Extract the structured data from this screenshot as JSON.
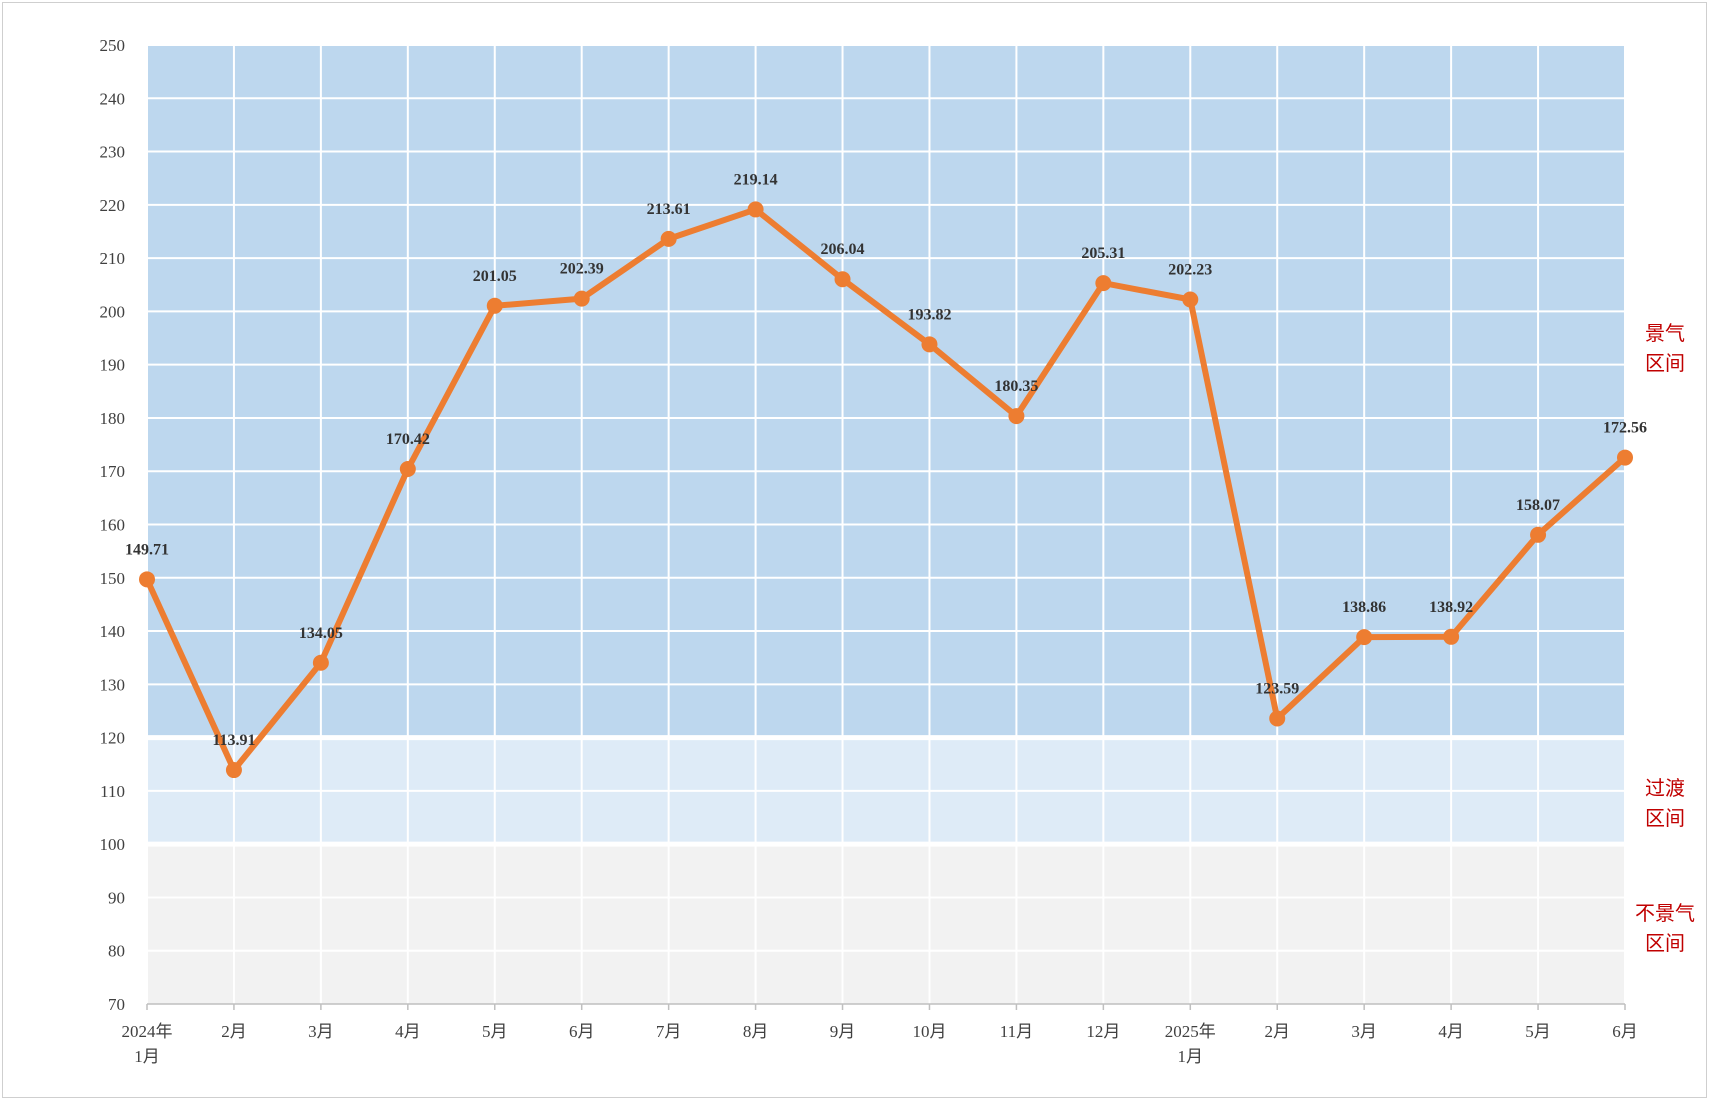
{
  "chart_data": {
    "type": "line",
    "title": "",
    "xlabel": "",
    "ylabel": "",
    "ylim": [
      70,
      250
    ],
    "yticks": [
      70,
      80,
      90,
      100,
      110,
      120,
      130,
      140,
      150,
      160,
      170,
      180,
      190,
      200,
      210,
      220,
      230,
      240,
      250
    ],
    "grid": true,
    "categories": [
      [
        "2024年",
        "1月"
      ],
      [
        "2月"
      ],
      [
        "3月"
      ],
      [
        "4月"
      ],
      [
        "5月"
      ],
      [
        "6月"
      ],
      [
        "7月"
      ],
      [
        "8月"
      ],
      [
        "9月"
      ],
      [
        "10月"
      ],
      [
        "11月"
      ],
      [
        "12月"
      ],
      [
        "2025年",
        "1月"
      ],
      [
        "2月"
      ],
      [
        "3月"
      ],
      [
        "4月"
      ],
      [
        "5月"
      ],
      [
        "6月"
      ]
    ],
    "series": [
      {
        "values": [
          149.71,
          113.91,
          134.05,
          170.42,
          201.05,
          202.39,
          213.61,
          219.14,
          206.04,
          193.82,
          180.35,
          205.31,
          202.23,
          123.59,
          138.86,
          138.92,
          158.07,
          172.56
        ],
        "color": "#ed7d31"
      }
    ],
    "bands": [
      {
        "from": 120,
        "to": 250,
        "label": [
          "景气",
          "区间"
        ],
        "color": "#bdd7ee"
      },
      {
        "from": 100,
        "to": 120,
        "label": [
          "过渡",
          "区间"
        ],
        "color": "#deebf7"
      },
      {
        "from": 70,
        "to": 100,
        "label": [
          "不景气",
          "区间"
        ],
        "color": "#f2f2f2"
      }
    ]
  }
}
